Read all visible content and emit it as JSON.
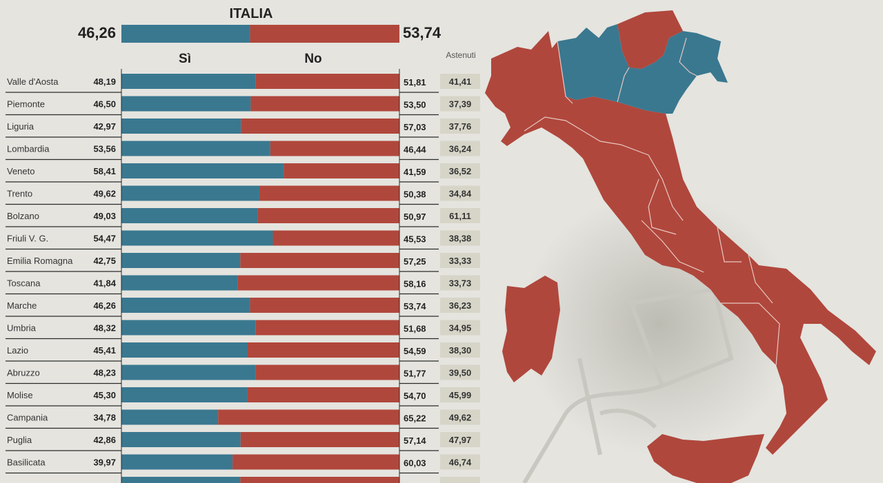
{
  "colors": {
    "si": "#3a7890",
    "no": "#b0473c",
    "background": "#e5e4df",
    "astenuti_bg": "#d6d5c8"
  },
  "chart_data": {
    "type": "bar",
    "title": "ITALIA",
    "national": {
      "si": "46,26",
      "no": "53,74",
      "si_value": 46.26,
      "no_value": 53.74
    },
    "legend": {
      "si": "Sì",
      "no": "No",
      "astenuti": "Astenuti"
    },
    "regions": [
      {
        "name": "Valle d'Aosta",
        "si": "48,19",
        "no": "51,81",
        "astenuti": "41,41",
        "si_value": 48.19
      },
      {
        "name": "Piemonte",
        "si": "46,50",
        "no": "53,50",
        "astenuti": "37,39",
        "si_value": 46.5
      },
      {
        "name": "Liguria",
        "si": "42,97",
        "no": "57,03",
        "astenuti": "37,76",
        "si_value": 42.97
      },
      {
        "name": "Lombardia",
        "si": "53,56",
        "no": "46,44",
        "astenuti": "36,24",
        "si_value": 53.56
      },
      {
        "name": "Veneto",
        "si": "58,41",
        "no": "41,59",
        "astenuti": "36,52",
        "si_value": 58.41
      },
      {
        "name": "Trento",
        "si": "49,62",
        "no": "50,38",
        "astenuti": "34,84",
        "si_value": 49.62
      },
      {
        "name": "Bolzano",
        "si": "49,03",
        "no": "50,97",
        "astenuti": "61,11",
        "si_value": 49.03
      },
      {
        "name": "Friuli V. G.",
        "si": "54,47",
        "no": "45,53",
        "astenuti": "38,38",
        "si_value": 54.47
      },
      {
        "name": "Emilia Romagna",
        "si": "42,75",
        "no": "57,25",
        "astenuti": "33,33",
        "si_value": 42.75
      },
      {
        "name": "Toscana",
        "si": "41,84",
        "no": "58,16",
        "astenuti": "33,73",
        "si_value": 41.84
      },
      {
        "name": "Marche",
        "si": "46,26",
        "no": "53,74",
        "astenuti": "36,23",
        "si_value": 46.26
      },
      {
        "name": "Umbria",
        "si": "48,32",
        "no": "51,68",
        "astenuti": "34,95",
        "si_value": 48.32
      },
      {
        "name": "Lazio",
        "si": "45,41",
        "no": "54,59",
        "astenuti": "38,30",
        "si_value": 45.41
      },
      {
        "name": "Abruzzo",
        "si": "48,23",
        "no": "51,77",
        "astenuti": "39,50",
        "si_value": 48.23
      },
      {
        "name": "Molise",
        "si": "45,30",
        "no": "54,70",
        "astenuti": "45,99",
        "si_value": 45.3
      },
      {
        "name": "Campania",
        "si": "34,78",
        "no": "65,22",
        "astenuti": "49,62",
        "si_value": 34.78
      },
      {
        "name": "Puglia",
        "si": "42,86",
        "no": "57,14",
        "astenuti": "47,97",
        "si_value": 42.86
      },
      {
        "name": "Basilicata",
        "si": "39,97",
        "no": "60,03",
        "astenuti": "46,74",
        "si_value": 39.97
      }
    ],
    "xlim": [
      0,
      100
    ]
  }
}
